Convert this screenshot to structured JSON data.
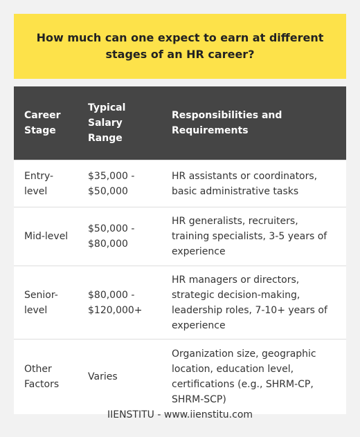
{
  "title": "How much can one expect to earn at different stages of an HR career?",
  "table": {
    "headers": [
      "Career Stage",
      "Typical Salary Range",
      "Responsibilities and Requirements"
    ],
    "rows": [
      [
        "Entry-level",
        "$35,000 - $50,000",
        "HR assistants or coordinators, basic administrative tasks"
      ],
      [
        "Mid-level",
        "$50,000 - $80,000",
        "HR generalists, recruiters, training specialists, 3-5 years of experience"
      ],
      [
        "Senior-level",
        "$80,000 - $120,000+",
        "HR managers or directors, strategic decision-making, leadership roles, 7-10+ years of experience"
      ],
      [
        "Other Factors",
        "Varies",
        "Organization size, geographic location, education level, certifications (e.g., SHRM-CP, SHRM-SCP)"
      ]
    ]
  },
  "footer": "IIENSTITU - www.iienstitu.com",
  "colors": {
    "title_background": "#fde24a",
    "header_background": "#454545",
    "page_background": "#f2f2f2"
  }
}
